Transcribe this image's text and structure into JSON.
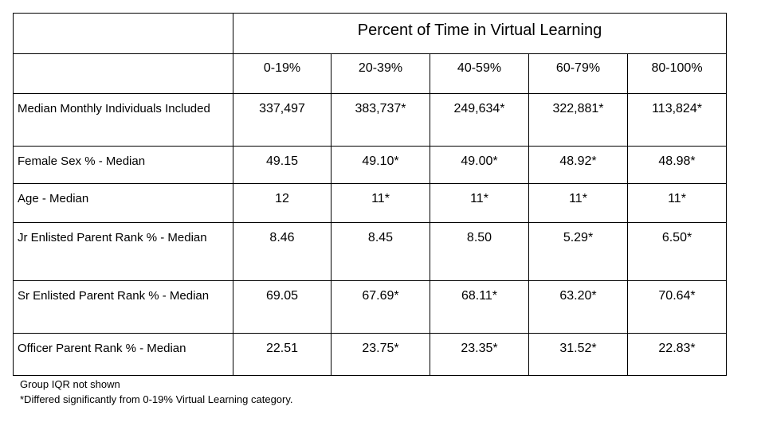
{
  "table": {
    "header_title": "Percent of Time in Virtual Learning",
    "columns": [
      "0-19%",
      "20-39%",
      "40-59%",
      "60-79%",
      "80-100%"
    ],
    "rows": [
      {
        "label": "Median Monthly Individuals Included",
        "values": [
          "337,497",
          "383,737*",
          "249,634*",
          "322,881*",
          "113,824*"
        ]
      },
      {
        "label": "Female Sex % - Median",
        "values": [
          "49.15",
          "49.10*",
          "49.00*",
          "48.92*",
          "48.98*"
        ]
      },
      {
        "label": "Age - Median",
        "values": [
          "12",
          "11*",
          "11*",
          "11*",
          "11*"
        ]
      },
      {
        "label": "Jr Enlisted Parent Rank % - Median",
        "values": [
          "8.46",
          "8.45",
          "8.50",
          "5.29*",
          "6.50*"
        ]
      },
      {
        "label": "Sr Enlisted Parent Rank % - Median",
        "values": [
          "69.05",
          "67.69*",
          "68.11*",
          "63.20*",
          "70.64*"
        ]
      },
      {
        "label": "Officer Parent Rank % - Median",
        "values": [
          "22.51",
          "23.75*",
          "23.35*",
          "31.52*",
          "22.83*"
        ]
      }
    ]
  },
  "notes": {
    "line1": "Group IQR not shown",
    "line2": "*Differed significantly from 0-19% Virtual Learning category."
  }
}
